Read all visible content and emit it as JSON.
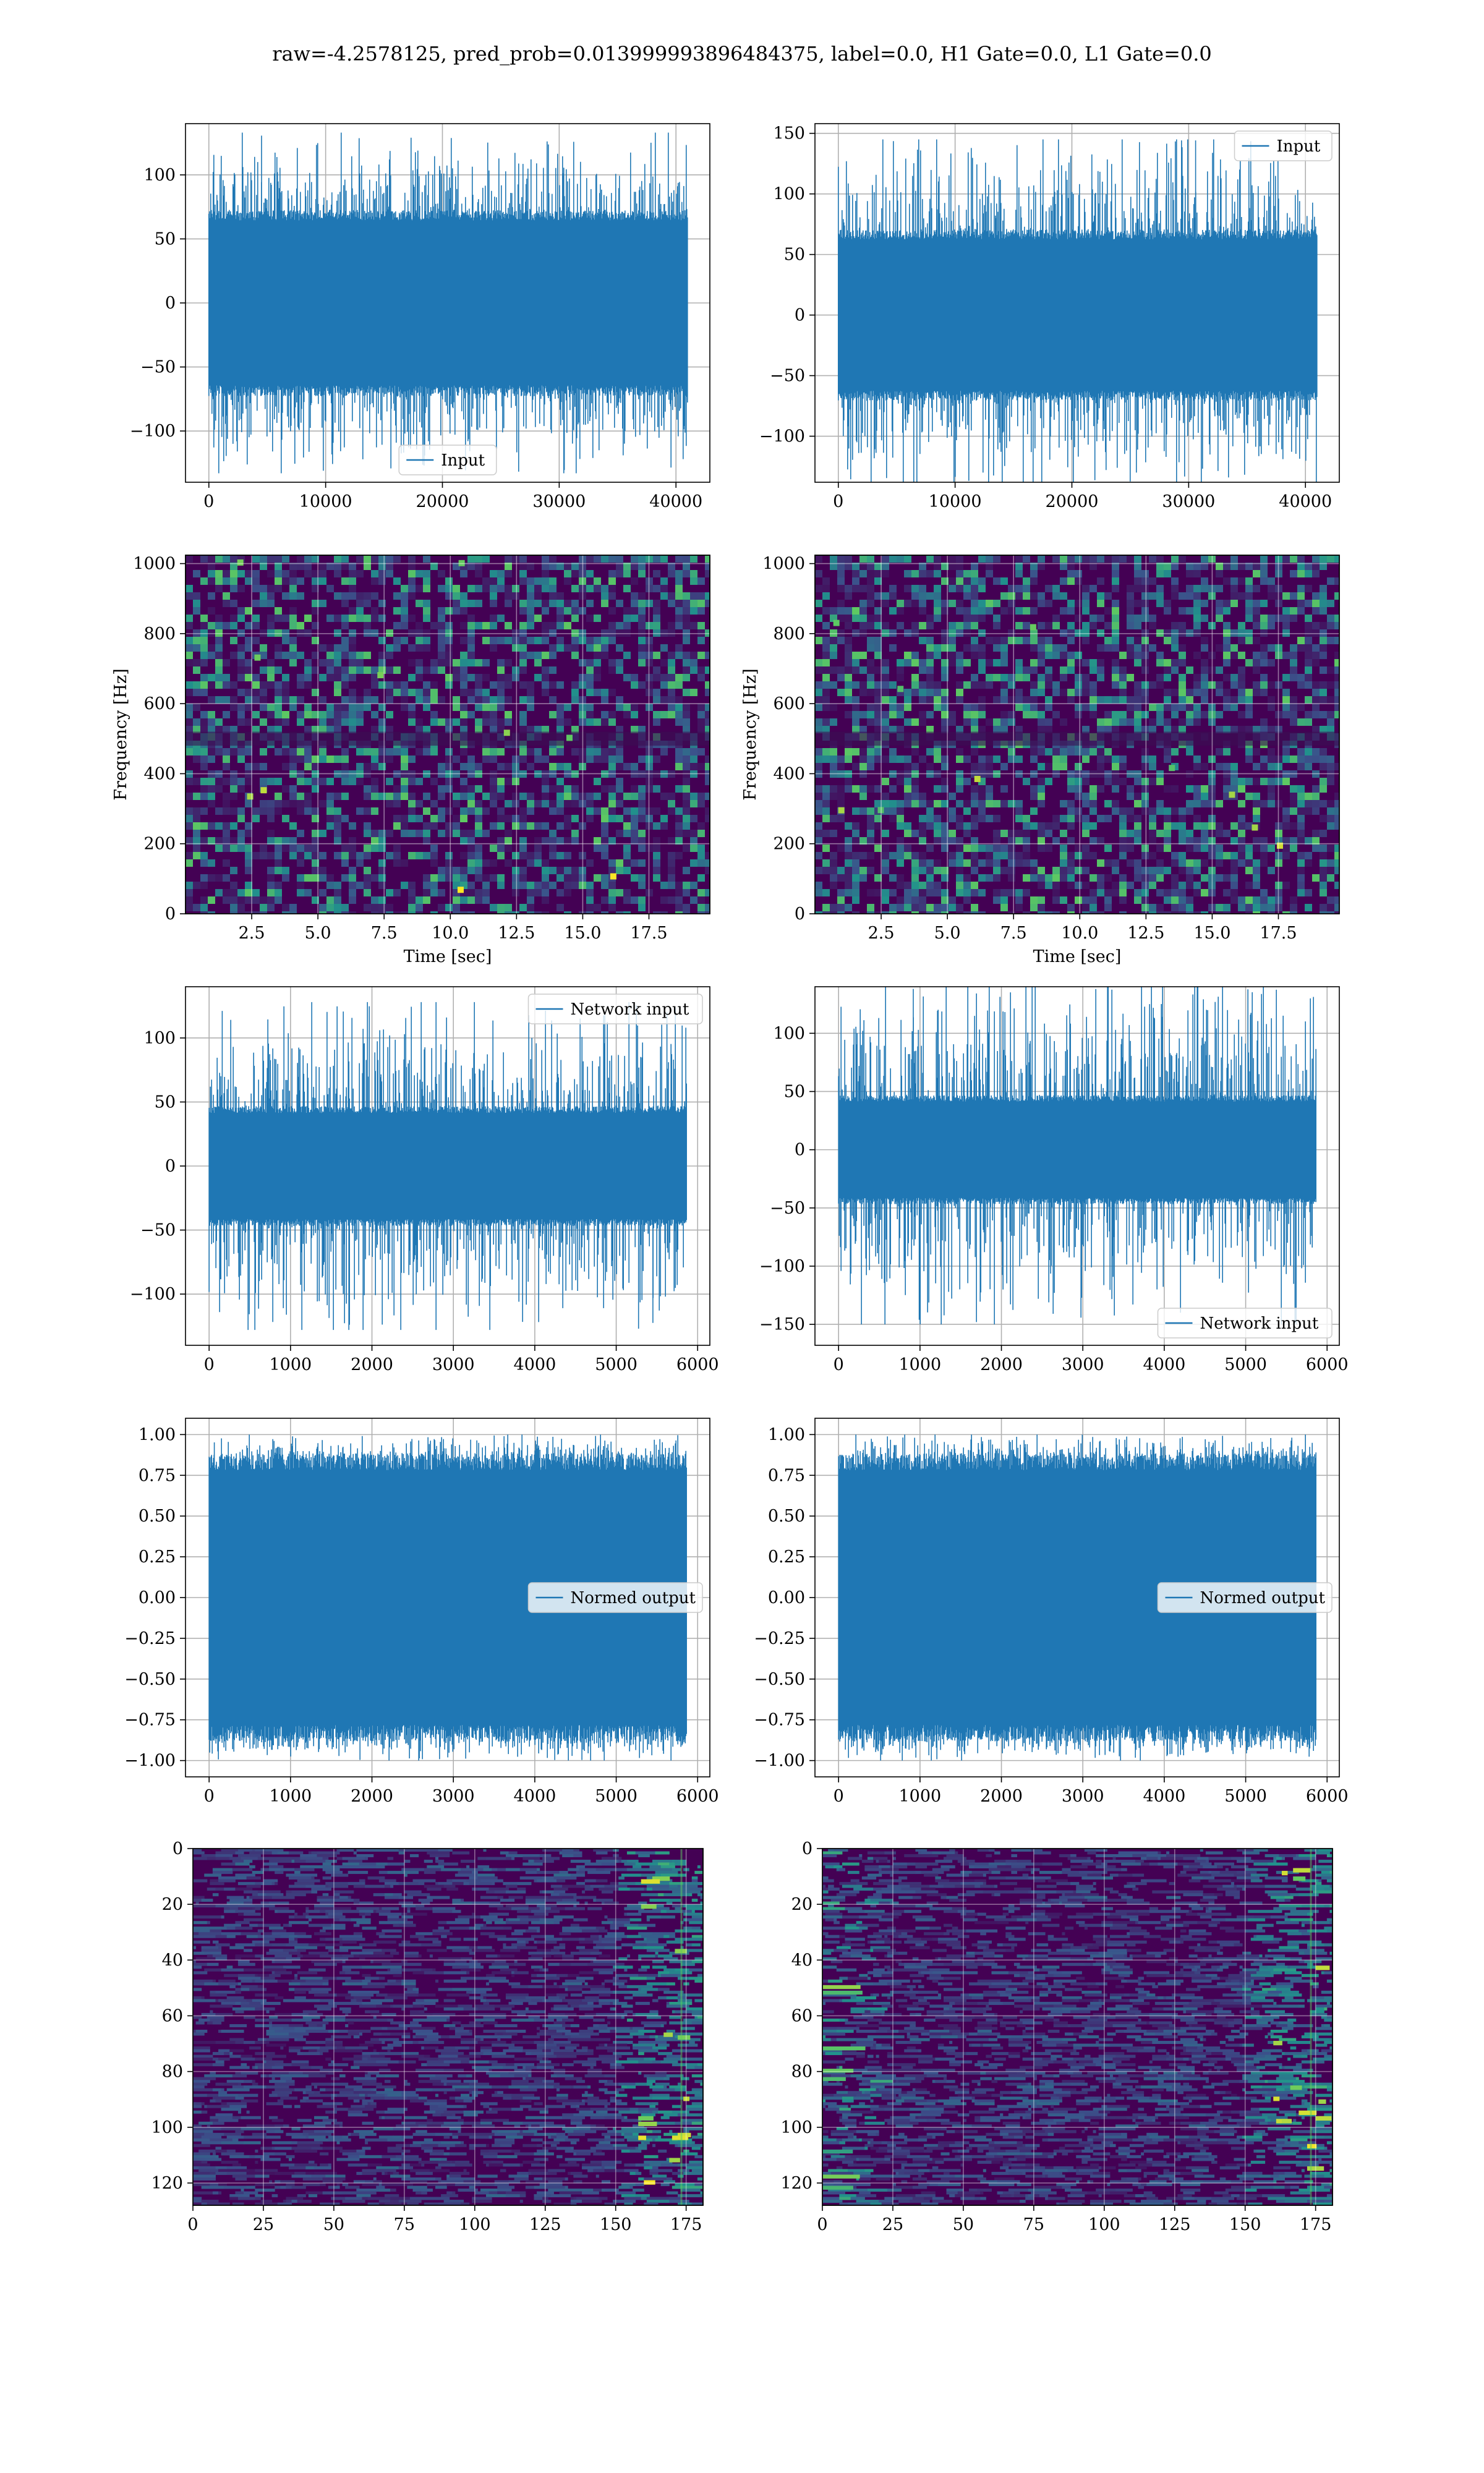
{
  "figure": {
    "suptitle": "raw=-4.2578125, pred_prob=0.013999993896484375, label=0.0, H1 Gate=0.0, L1 Gate=0.0"
  },
  "colors": {
    "line": "#1f77b4",
    "grid": "#b0b0b0",
    "viridis_low": "#440154",
    "viridis_mid": "#21918c",
    "viridis_high": "#fde725"
  },
  "chart_data": [
    {
      "id": "h1-input",
      "type": "line",
      "title": "",
      "xlabel": "",
      "ylabel": "",
      "legend": {
        "label": "Input",
        "loc": "lower-center"
      },
      "xlim": [
        -2000,
        42900
      ],
      "ylim": [
        -140,
        140
      ],
      "xticks": [
        0,
        10000,
        20000,
        30000,
        40000
      ],
      "yticks": [
        -100,
        -50,
        0,
        50,
        100
      ],
      "signal": {
        "n_samples": 40960,
        "core_amplitude": 70,
        "max_abs": 133
      }
    },
    {
      "id": "l1-input",
      "type": "line",
      "title": "",
      "xlabel": "",
      "ylabel": "",
      "legend": {
        "label": "Input",
        "loc": "upper-right"
      },
      "xlim": [
        -2000,
        42900
      ],
      "ylim": [
        -138,
        158
      ],
      "xticks": [
        0,
        10000,
        20000,
        30000,
        40000
      ],
      "yticks": [
        -100,
        -50,
        0,
        50,
        100,
        150
      ],
      "signal": {
        "n_samples": 40960,
        "core_amplitude": 68,
        "max_abs": 145
      }
    },
    {
      "id": "h1-spectrogram",
      "type": "heatmap",
      "xlabel": "Time [sec]",
      "ylabel": "Frequency [Hz]",
      "xlim": [
        0.0,
        19.8
      ],
      "ylim": [
        0,
        1024
      ],
      "xticks": [
        2.5,
        5.0,
        7.5,
        10.0,
        12.5,
        15.0,
        17.5
      ],
      "yticks": [
        0,
        200,
        400,
        600,
        800,
        1000
      ]
    },
    {
      "id": "l1-spectrogram",
      "type": "heatmap",
      "xlabel": "Time [sec]",
      "ylabel": "Frequency [Hz]",
      "xlim": [
        0.0,
        19.8
      ],
      "ylim": [
        0,
        1024
      ],
      "xticks": [
        2.5,
        5.0,
        7.5,
        10.0,
        12.5,
        15.0,
        17.5
      ],
      "yticks": [
        0,
        200,
        400,
        600,
        800,
        1000
      ]
    },
    {
      "id": "h1-network-input",
      "type": "line",
      "xlabel": "",
      "ylabel": "",
      "legend": {
        "label": "Network input",
        "loc": "upper-right"
      },
      "xlim": [
        -290,
        6150
      ],
      "ylim": [
        -140,
        140
      ],
      "xticks": [
        0,
        1000,
        2000,
        3000,
        4000,
        5000,
        6000
      ],
      "yticks": [
        -100,
        -50,
        0,
        50,
        100
      ],
      "signal": {
        "n_samples": 5860,
        "core_amplitude": 45,
        "max_abs": 128
      }
    },
    {
      "id": "l1-network-input",
      "type": "line",
      "xlabel": "",
      "ylabel": "",
      "legend": {
        "label": "Network input",
        "loc": "lower-right"
      },
      "xlim": [
        -290,
        6150
      ],
      "ylim": [
        -168,
        140
      ],
      "xticks": [
        0,
        1000,
        2000,
        3000,
        4000,
        5000,
        6000
      ],
      "yticks": [
        -150,
        -100,
        -50,
        0,
        50,
        100
      ],
      "signal": {
        "n_samples": 5860,
        "core_amplitude": 45,
        "max_abs": 150
      }
    },
    {
      "id": "h1-normed-output",
      "type": "line",
      "xlabel": "",
      "ylabel": "",
      "legend": {
        "label": "Normed output",
        "loc": "center-right"
      },
      "xlim": [
        -290,
        6150
      ],
      "ylim": [
        -1.1,
        1.1
      ],
      "xticks": [
        0,
        1000,
        2000,
        3000,
        4000,
        5000,
        6000
      ],
      "yticks": [
        -1.0,
        -0.75,
        -0.5,
        -0.25,
        0.0,
        0.25,
        0.5,
        0.75,
        1.0
      ],
      "ytick_labels": [
        "−1.00",
        "−0.75",
        "−0.50",
        "−0.25",
        "0.00",
        "0.25",
        "0.50",
        "0.75",
        "1.00"
      ],
      "signal": {
        "n_samples": 5860,
        "core_amplitude": 0.85,
        "max_abs": 1.0
      }
    },
    {
      "id": "l1-normed-output",
      "type": "line",
      "xlabel": "",
      "ylabel": "",
      "legend": {
        "label": "Normed output",
        "loc": "center-right"
      },
      "xlim": [
        -290,
        6150
      ],
      "ylim": [
        -1.1,
        1.1
      ],
      "xticks": [
        0,
        1000,
        2000,
        3000,
        4000,
        5000,
        6000
      ],
      "yticks": [
        -1.0,
        -0.75,
        -0.5,
        -0.25,
        0.0,
        0.25,
        0.5,
        0.75,
        1.0
      ],
      "ytick_labels": [
        "−1.00",
        "−0.75",
        "−0.50",
        "−0.25",
        "0.00",
        "0.25",
        "0.50",
        "0.75",
        "1.00"
      ],
      "signal": {
        "n_samples": 5860,
        "core_amplitude": 0.85,
        "max_abs": 1.0
      }
    },
    {
      "id": "h1-feature-map",
      "type": "heatmap",
      "xlabel": "",
      "ylabel": "",
      "xlim": [
        0,
        181
      ],
      "ylim": [
        128,
        0
      ],
      "xticks": [
        0,
        25,
        50,
        75,
        100,
        125,
        150,
        175
      ],
      "yticks": [
        0,
        20,
        40,
        60,
        80,
        100,
        120
      ]
    },
    {
      "id": "l1-feature-map",
      "type": "heatmap",
      "xlabel": "",
      "ylabel": "",
      "xlim": [
        0,
        181
      ],
      "ylim": [
        128,
        0
      ],
      "xticks": [
        0,
        25,
        50,
        75,
        100,
        125,
        150,
        175
      ],
      "yticks": [
        0,
        20,
        40,
        60,
        80,
        100,
        120
      ]
    }
  ]
}
